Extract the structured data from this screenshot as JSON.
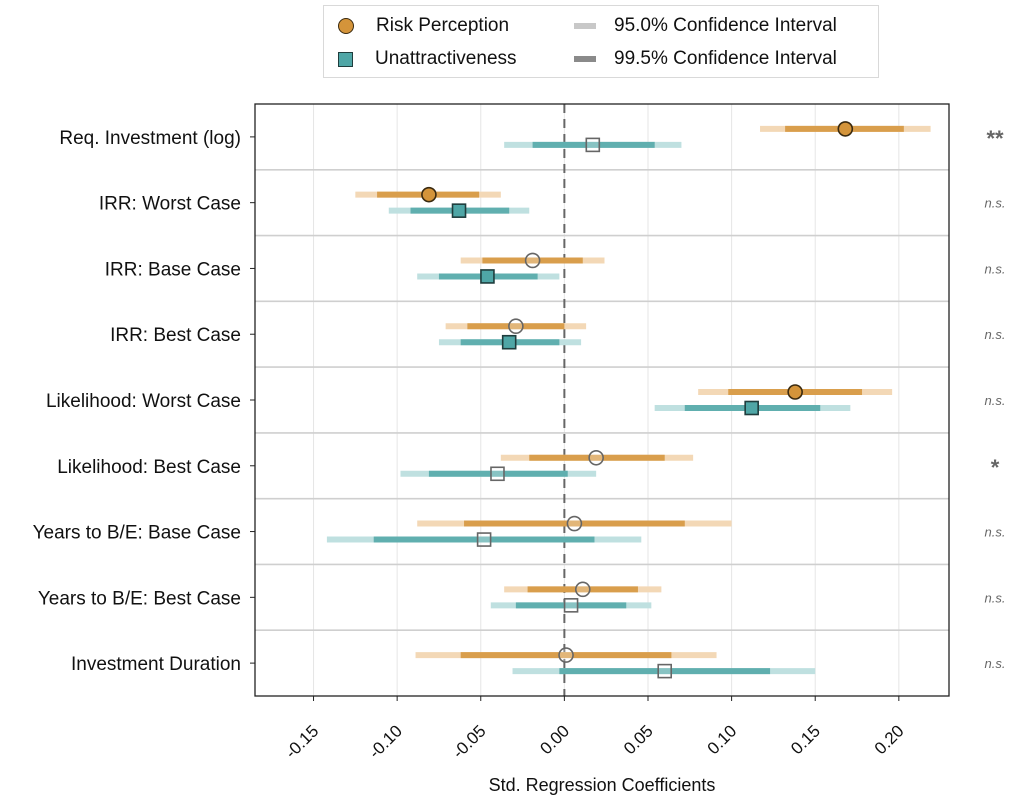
{
  "legend": {
    "risk_label": "Risk Perception",
    "unattr_label": "Unattractiveness",
    "ci95_label": "95.0% Confidence Interval",
    "ci995_label": "99.5% Confidence Interval"
  },
  "colors": {
    "risk": "#d4943a",
    "risk_light": "#f3d8b6",
    "unattr": "#4fa6a6",
    "unattr_light": "#bfe0e0",
    "ci95": "#c8c8c8",
    "ci995": "#8a8a8a",
    "significance": "#666666"
  },
  "chart_data": {
    "type": "scatter",
    "subtype": "coefficient-plot",
    "xlabel": "Std. Regression Coefficients",
    "xlim": [
      -0.185,
      0.23
    ],
    "x_ticks": [
      "-0.15",
      "-0.10",
      "-0.05",
      "0.00",
      "0.05",
      "0.10",
      "0.15",
      "0.20"
    ],
    "x_tick_values": [
      -0.15,
      -0.1,
      -0.05,
      0.0,
      0.05,
      0.1,
      0.15,
      0.2
    ],
    "grid": "vertical",
    "reference_line": 0.0,
    "legend_position": "top-center",
    "categories": [
      "Req. Investment (log)",
      "IRR: Worst Case",
      "IRR: Base Case",
      "IRR: Best Case",
      "Likelihood: Worst Case",
      "Likelihood: Best Case",
      "Years to B/E: Base Case",
      "Years to B/E: Best Case",
      "Investment Duration"
    ],
    "significance": [
      "**",
      "n.s.",
      "n.s.",
      "n.s.",
      "n.s.",
      "*",
      "n.s.",
      "n.s.",
      "n.s."
    ],
    "series": [
      {
        "name": "Risk Perception",
        "marker": "circle",
        "estimate": [
          0.168,
          -0.081,
          -0.019,
          -0.029,
          0.138,
          0.019,
          0.006,
          0.011,
          0.001
        ],
        "significant": [
          true,
          true,
          false,
          false,
          true,
          false,
          false,
          false,
          false
        ],
        "ci95": [
          [
            0.132,
            0.203
          ],
          [
            -0.112,
            -0.051
          ],
          [
            -0.049,
            0.011
          ],
          [
            -0.058,
            0.0
          ],
          [
            0.098,
            0.178
          ],
          [
            -0.021,
            0.06
          ],
          [
            -0.06,
            0.072
          ],
          [
            -0.022,
            0.044
          ],
          [
            -0.062,
            0.064
          ]
        ],
        "ci995": [
          [
            0.117,
            0.219
          ],
          [
            -0.125,
            -0.038
          ],
          [
            -0.062,
            0.024
          ],
          [
            -0.071,
            0.013
          ],
          [
            0.08,
            0.196
          ],
          [
            -0.038,
            0.077
          ],
          [
            -0.088,
            0.1
          ],
          [
            -0.036,
            0.058
          ],
          [
            -0.089,
            0.091
          ]
        ]
      },
      {
        "name": "Unattractiveness",
        "marker": "square",
        "estimate": [
          0.017,
          -0.063,
          -0.046,
          -0.033,
          0.112,
          -0.04,
          -0.048,
          0.004,
          0.06
        ],
        "significant": [
          false,
          true,
          true,
          true,
          true,
          false,
          false,
          false,
          false
        ],
        "ci95": [
          [
            -0.019,
            0.054
          ],
          [
            -0.092,
            -0.033
          ],
          [
            -0.075,
            -0.016
          ],
          [
            -0.062,
            -0.003
          ],
          [
            0.072,
            0.153
          ],
          [
            -0.081,
            0.002
          ],
          [
            -0.114,
            0.018
          ],
          [
            -0.029,
            0.037
          ],
          [
            -0.003,
            0.123
          ]
        ],
        "ci995": [
          [
            -0.036,
            0.07
          ],
          [
            -0.105,
            -0.021
          ],
          [
            -0.088,
            -0.003
          ],
          [
            -0.075,
            0.01
          ],
          [
            0.054,
            0.171
          ],
          [
            -0.098,
            0.019
          ],
          [
            -0.142,
            0.046
          ],
          [
            -0.044,
            0.052
          ],
          [
            -0.031,
            0.15
          ]
        ]
      }
    ]
  }
}
